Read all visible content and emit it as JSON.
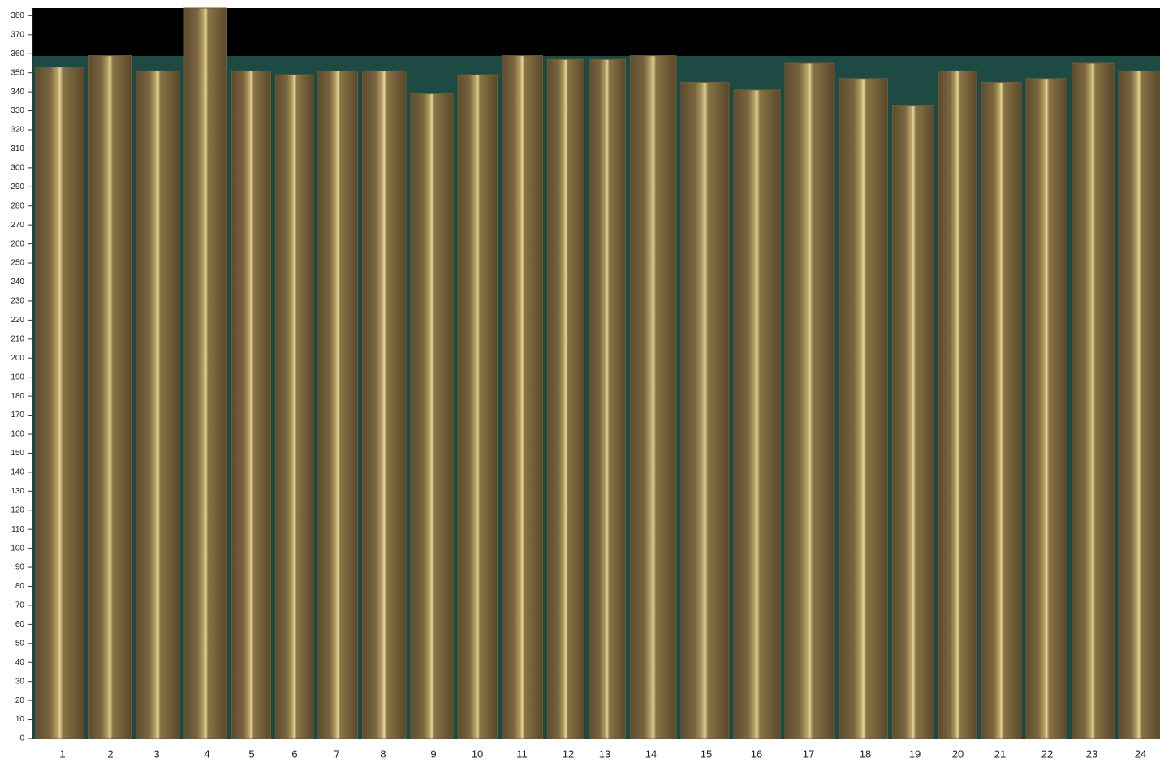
{
  "chart_data": {
    "type": "bar",
    "categories": [
      "1",
      "2",
      "3",
      "4",
      "5",
      "6",
      "7",
      "8",
      "9",
      "10",
      "11",
      "12",
      "13",
      "14",
      "15",
      "16",
      "17",
      "18",
      "19",
      "20",
      "21",
      "22",
      "23",
      "24"
    ],
    "values": [
      353,
      359,
      351,
      384,
      351,
      349,
      351,
      351,
      339,
      349,
      359,
      357,
      357,
      359,
      345,
      341,
      355,
      347,
      333,
      351,
      345,
      347,
      355,
      351
    ],
    "color": "#6f5b36",
    "ylim": [
      0,
      384
    ],
    "yticks": [
      0,
      10,
      20,
      30,
      40,
      50,
      60,
      70,
      80,
      90,
      100,
      110,
      120,
      130,
      140,
      150,
      160,
      170,
      180,
      190,
      200,
      210,
      220,
      230,
      240,
      250,
      260,
      270,
      280,
      290,
      300,
      310,
      320,
      330,
      340,
      350,
      360,
      370,
      380
    ]
  }
}
